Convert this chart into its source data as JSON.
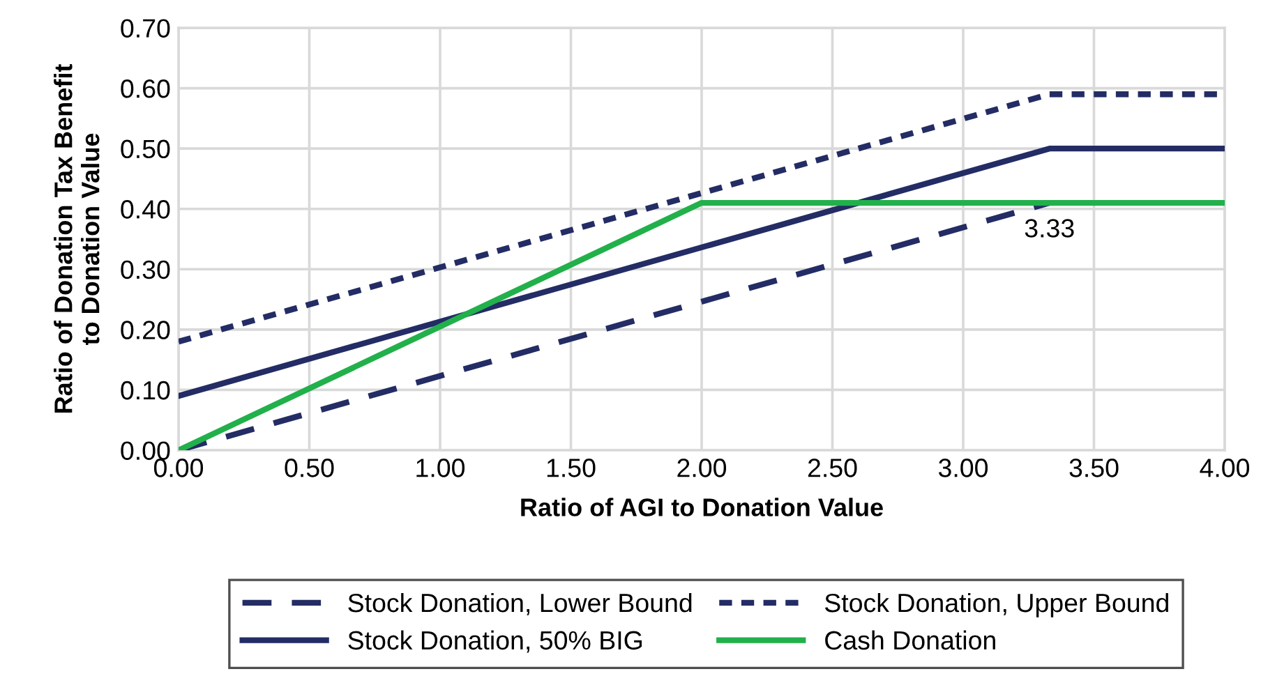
{
  "chart_data": {
    "type": "line",
    "xlabel": "Ratio of AGI to Donation Value",
    "ylabel": "Ratio of Donation Tax Benefit\nto Donation Value",
    "xlim": [
      0,
      4
    ],
    "xticks": [
      {
        "value": 0,
        "label": "0.00"
      },
      {
        "value": 0.5,
        "label": "0.50"
      },
      {
        "value": 1,
        "label": "1.00"
      },
      {
        "value": 1.5,
        "label": "1.50"
      },
      {
        "value": 2,
        "label": "2.00"
      },
      {
        "value": 2.5,
        "label": "2.50"
      },
      {
        "value": 3,
        "label": "3.00"
      },
      {
        "value": 3.5,
        "label": "3.50"
      },
      {
        "value": 4,
        "label": "4.00"
      }
    ],
    "ylim": [
      0,
      0.7
    ],
    "yticks": [
      {
        "value": 0,
        "label": "0.00"
      },
      {
        "value": 0.1,
        "label": "0.10"
      },
      {
        "value": 0.2,
        "label": "0.20"
      },
      {
        "value": 0.3,
        "label": "0.30"
      },
      {
        "value": 0.4,
        "label": "0.40"
      },
      {
        "value": 0.5,
        "label": "0.50"
      },
      {
        "value": 0.6,
        "label": "0.60"
      },
      {
        "value": 0.7,
        "label": "0.70"
      }
    ],
    "grid": true,
    "legend": "bottom",
    "marker": "none",
    "series": [
      {
        "name": "Stock Donation, Lower Bound",
        "color": "#232c64",
        "line_style": "dashed",
        "x": [
          0,
          3.33
        ],
        "values": [
          0,
          0.41
        ]
      },
      {
        "name": "Stock Donation, Upper Bound",
        "color": "#232c64",
        "line_style": "dotted",
        "x": [
          0,
          3.33,
          4
        ],
        "values": [
          0.18,
          0.59,
          0.59
        ]
      },
      {
        "name": "Stock Donation, 50% BIG",
        "color": "#232c64",
        "line_style": "solid",
        "x": [
          0,
          3.33,
          4
        ],
        "values": [
          0.09,
          0.5,
          0.5
        ]
      },
      {
        "name": "Cash Donation",
        "color": "#22b04b",
        "line_style": "solid",
        "x": [
          0,
          2,
          4
        ],
        "values": [
          0,
          0.41,
          0.41
        ]
      }
    ],
    "annotations": [
      {
        "text": "3.33",
        "x": 3.33,
        "y": 0.41
      }
    ]
  }
}
